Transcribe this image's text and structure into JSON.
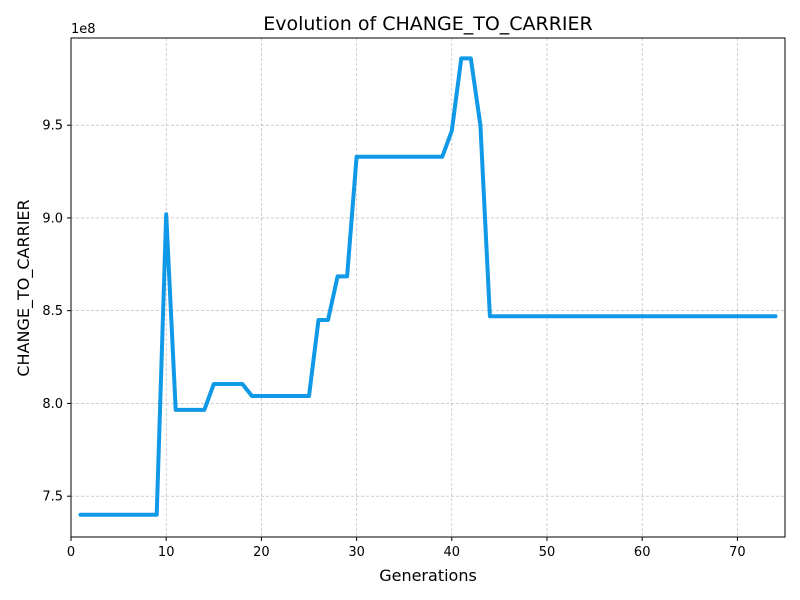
{
  "chart_data": {
    "type": "line",
    "title": "Evolution of CHANGE_TO_CARRIER",
    "xlabel": "Generations",
    "ylabel": "CHANGE_TO_CARRIER",
    "y_offset_label": "1e8",
    "xlim": [
      0,
      75
    ],
    "ylim": [
      7.28,
      9.97
    ],
    "y_scale": 100000000.0,
    "x_ticks": [
      0,
      10,
      20,
      30,
      40,
      50,
      60,
      70
    ],
    "x_tick_labels": [
      "0",
      "10",
      "20",
      "30",
      "40",
      "50",
      "60",
      "70"
    ],
    "y_ticks": [
      7.5,
      8.0,
      8.5,
      9.0,
      9.5
    ],
    "y_tick_labels": [
      "7.5",
      "8.0",
      "8.5",
      "9.0",
      "9.5"
    ],
    "grid": true,
    "color": "#0f99e6",
    "series": [
      {
        "x": [
          1,
          9,
          10,
          11,
          14,
          15,
          18,
          19,
          25,
          26,
          27,
          28,
          29,
          30,
          39,
          40,
          41,
          42,
          43,
          44,
          74
        ],
        "values": [
          7.4,
          7.4,
          9.02,
          7.965,
          7.965,
          8.105,
          8.105,
          8.04,
          8.04,
          8.45,
          8.45,
          8.685,
          8.685,
          9.33,
          9.33,
          9.47,
          9.86,
          9.86,
          9.5,
          8.47,
          8.47
        ]
      }
    ]
  }
}
